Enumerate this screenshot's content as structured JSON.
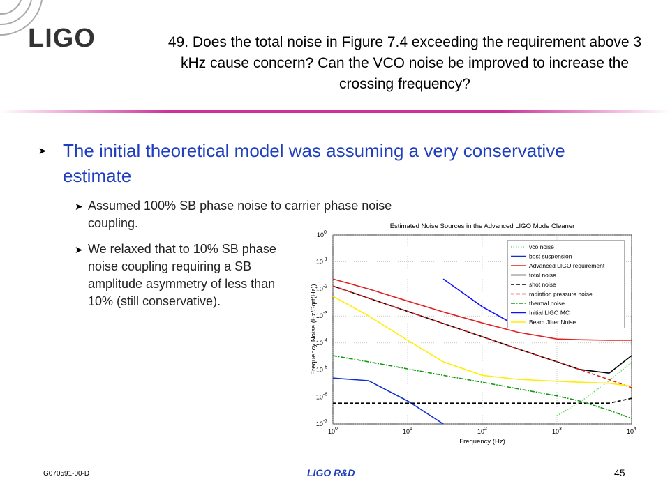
{
  "header": {
    "logo": "LIGO",
    "question": "49. Does the total noise in Figure 7.4 exceeding the requirement above 3 kHz cause concern? Can the VCO noise be improved to increase the crossing frequency?"
  },
  "bullets": [
    {
      "text": "The initial theoretical model was assuming a very conservative estimate",
      "sub": [
        "Assumed 100% SB phase noise to carrier phase noise coupling.",
        "We relaxed that to 10% SB phase noise coupling requiring a SB amplitude asymmetry of less than 10% (still conservative)."
      ]
    }
  ],
  "chart_data": {
    "type": "line",
    "title": "Estimated Noise Sources in the Advanced LIGO Mode Cleaner",
    "xlabel": "Frequency (Hz)",
    "ylabel": "Frequency Noise (Hz/Sqrt(Hz))",
    "xscale": "log",
    "yscale": "log",
    "grid": true,
    "legend": "upper right",
    "xlim": [
      1,
      10000
    ],
    "ylim": [
      1e-07,
      1
    ],
    "xticks": [
      {
        "value": 1,
        "label": "10^0"
      },
      {
        "value": 10,
        "label": "10^1"
      },
      {
        "value": 100,
        "label": "10^2"
      },
      {
        "value": 1000,
        "label": "10^3"
      },
      {
        "value": 10000,
        "label": "10^4"
      }
    ],
    "yticks": [
      {
        "value": 1e-07,
        "label": "10^-7"
      },
      {
        "value": 1e-06,
        "label": "10^-6"
      },
      {
        "value": 1e-05,
        "label": "10^-5"
      },
      {
        "value": 0.0001,
        "label": "10^-4"
      },
      {
        "value": 0.001,
        "label": "10^-3"
      },
      {
        "value": 0.01,
        "label": "10^-2"
      },
      {
        "value": 0.1,
        "label": "10^-1"
      },
      {
        "value": 1,
        "label": "10^0"
      }
    ],
    "x": [
      1,
      3,
      10,
      30,
      100,
      300,
      1000,
      2000,
      5000,
      10000
    ],
    "series": [
      {
        "name": "vco noise",
        "color": "#66dd66",
        "dash": "dotted",
        "values": [
          null,
          null,
          null,
          null,
          null,
          null,
          2e-07,
          6.3e-07,
          4e-06,
          1.9e-05
        ]
      },
      {
        "name": "best suspension",
        "color": "#1030d0",
        "dash": "solid",
        "values": [
          5e-06,
          4e-06,
          7.1e-07,
          1e-07,
          null,
          null,
          null,
          null,
          null,
          null
        ]
      },
      {
        "name": "Advanced LIGO requirement",
        "color": "#e02020",
        "dash": "solid",
        "values": [
          0.0234,
          0.01,
          0.00355,
          0.00141,
          0.00055,
          0.00025,
          0.00014,
          0.000132,
          0.000126,
          0.000126
        ]
      },
      {
        "name": "total noise",
        "color": "#000000",
        "dash": "solid",
        "values": [
          0.0129,
          0.00457,
          0.00148,
          0.000525,
          0.00017,
          6e-05,
          2e-05,
          1.05e-05,
          7.6e-06,
          3.4e-05
        ]
      },
      {
        "name": "shot noise",
        "color": "#000000",
        "dash": "dashed",
        "values": [
          5.9e-07,
          5.9e-07,
          5.9e-07,
          5.9e-07,
          5.9e-07,
          5.9e-07,
          5.9e-07,
          5.9e-07,
          5.9e-07,
          8.9e-07
        ]
      },
      {
        "name": "radiation pressure noise",
        "color": "#e02020",
        "dash": "dashed",
        "values": [
          0.0129,
          0.00457,
          0.00148,
          0.000525,
          0.00017,
          6e-05,
          2e-05,
          1.05e-05,
          4.4e-06,
          2.2e-06
        ]
      },
      {
        "name": "thermal noise",
        "color": "#119911",
        "dash": "dashdot",
        "values": [
          3.4e-05,
          2e-05,
          1.1e-05,
          6.3e-06,
          3.5e-06,
          2e-06,
          1.1e-06,
          7.1e-07,
          3.2e-07,
          1.6e-07
        ]
      },
      {
        "name": "Initial LIGO MC",
        "color": "#1010ff",
        "dash": "solid",
        "values": [
          null,
          null,
          null,
          0.0234,
          0.0022,
          0.0004,
          0.00063,
          null,
          null,
          null
        ]
      },
      {
        "name": "Beam Jitter Noise",
        "color": "#ffee00",
        "dash": "solid",
        "values": [
          0.0054,
          0.001,
          0.000126,
          2e-05,
          6.3e-06,
          4.5e-06,
          3.8e-06,
          3.5e-06,
          3.2e-06,
          2.5e-06
        ]
      }
    ]
  },
  "footer": {
    "doc_id": "G070591-00-D",
    "center": "LIGO R&D",
    "page": "45"
  }
}
